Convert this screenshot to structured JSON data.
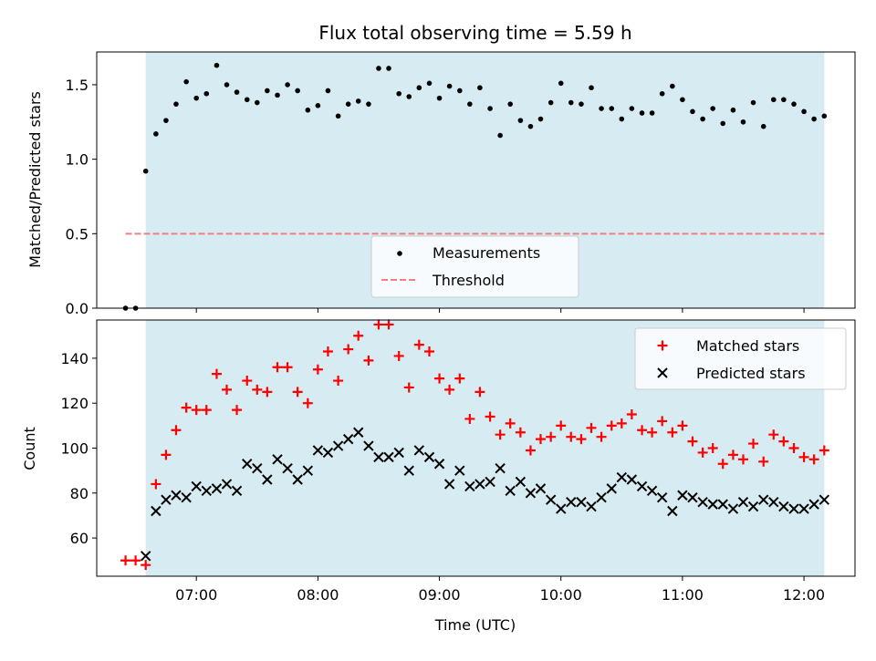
{
  "chart_data": [
    {
      "type": "scatter",
      "title": "Flux total observing time = 5.59 h",
      "xlabel": "",
      "ylabel": "Matched/Predicted stars",
      "xlim": [
        6.18,
        12.42
      ],
      "ylim": [
        0.0,
        1.72
      ],
      "yticks": [
        0.0,
        0.5,
        1.0,
        1.5
      ],
      "ytick_labels": [
        "0.0",
        "0.5",
        "1.0",
        "1.5"
      ],
      "observing_window": [
        6.583,
        12.167
      ],
      "threshold": {
        "name": "Threshold",
        "value": 0.5,
        "x_range": [
          6.417,
          12.167
        ],
        "color": "#f08080",
        "style": "dashed"
      },
      "legend": {
        "position": "lower-center",
        "entries": [
          "Measurements",
          "Threshold"
        ]
      },
      "series": [
        {
          "name": "Measurements",
          "color": "#000000",
          "marker": "dot",
          "x": [
            6.417,
            6.5,
            6.583,
            6.667,
            6.75,
            6.833,
            6.917,
            7.0,
            7.083,
            7.167,
            7.25,
            7.333,
            7.417,
            7.5,
            7.583,
            7.667,
            7.75,
            7.833,
            7.917,
            8.0,
            8.083,
            8.167,
            8.25,
            8.333,
            8.417,
            8.5,
            8.583,
            8.667,
            8.75,
            8.833,
            8.917,
            9.0,
            9.083,
            9.167,
            9.25,
            9.333,
            9.417,
            9.5,
            9.583,
            9.667,
            9.75,
            9.833,
            9.917,
            10.0,
            10.083,
            10.167,
            10.25,
            10.333,
            10.417,
            10.5,
            10.583,
            10.667,
            10.75,
            10.833,
            10.917,
            11.0,
            11.083,
            11.167,
            11.25,
            11.333,
            11.417,
            11.5,
            11.583,
            11.667,
            11.75,
            11.833,
            11.917,
            12.0,
            12.083,
            12.167
          ],
          "y": [
            0.0,
            0.0,
            0.92,
            1.17,
            1.26,
            1.37,
            1.52,
            1.41,
            1.44,
            1.63,
            1.5,
            1.45,
            1.4,
            1.38,
            1.46,
            1.43,
            1.5,
            1.46,
            1.33,
            1.36,
            1.46,
            1.29,
            1.37,
            1.39,
            1.37,
            1.61,
            1.61,
            1.44,
            1.42,
            1.48,
            1.51,
            1.41,
            1.49,
            1.46,
            1.37,
            1.48,
            1.34,
            1.16,
            1.37,
            1.26,
            1.22,
            1.27,
            1.38,
            1.51,
            1.38,
            1.37,
            1.48,
            1.34,
            1.34,
            1.27,
            1.34,
            1.31,
            1.31,
            1.44,
            1.49,
            1.4,
            1.32,
            1.27,
            1.34,
            1.24,
            1.33,
            1.25,
            1.38,
            1.22,
            1.4,
            1.4,
            1.37,
            1.32,
            1.27,
            1.29
          ]
        }
      ]
    },
    {
      "type": "scatter",
      "title": "",
      "xlabel": "Time (UTC)",
      "ylabel": "Count",
      "xlim": [
        6.18,
        12.42
      ],
      "ylim": [
        43,
        157
      ],
      "yticks": [
        60,
        80,
        100,
        120,
        140
      ],
      "ytick_labels": [
        "60",
        "80",
        "100",
        "120",
        "140"
      ],
      "xticks": [
        7,
        8,
        9,
        10,
        11,
        12
      ],
      "xtick_labels": [
        "07:00",
        "08:00",
        "09:00",
        "10:00",
        "11:00",
        "12:00"
      ],
      "observing_window": [
        6.583,
        12.167
      ],
      "legend": {
        "position": "top-right",
        "entries": [
          "Matched stars",
          "Predicted stars"
        ]
      },
      "x": [
        6.417,
        6.5,
        6.583,
        6.667,
        6.75,
        6.833,
        6.917,
        7.0,
        7.083,
        7.167,
        7.25,
        7.333,
        7.417,
        7.5,
        7.583,
        7.667,
        7.75,
        7.833,
        7.917,
        8.0,
        8.083,
        8.167,
        8.25,
        8.333,
        8.417,
        8.5,
        8.583,
        8.667,
        8.75,
        8.833,
        8.917,
        9.0,
        9.083,
        9.167,
        9.25,
        9.333,
        9.417,
        9.5,
        9.583,
        9.667,
        9.75,
        9.833,
        9.917,
        10.0,
        10.083,
        10.167,
        10.25,
        10.333,
        10.417,
        10.5,
        10.583,
        10.667,
        10.75,
        10.833,
        10.917,
        11.0,
        11.083,
        11.167,
        11.25,
        11.333,
        11.417,
        11.5,
        11.583,
        11.667,
        11.75,
        11.833,
        11.917,
        12.0,
        12.083,
        12.167
      ],
      "series": [
        {
          "name": "Matched stars",
          "color": "#ff0000",
          "marker": "plus",
          "values": [
            50,
            50,
            48,
            84,
            97,
            108,
            118,
            117,
            117,
            133,
            126,
            117,
            130,
            126,
            125,
            136,
            136,
            125,
            120,
            135,
            143,
            130,
            144,
            150,
            139,
            155,
            155,
            141,
            127,
            146,
            143,
            131,
            126,
            131,
            113,
            125,
            114,
            106,
            111,
            107,
            99,
            104,
            105,
            110,
            105,
            104,
            109,
            105,
            110,
            111,
            115,
            108,
            107,
            112,
            107,
            110,
            103,
            98,
            100,
            93,
            97,
            95,
            102,
            94,
            106,
            103,
            100,
            96,
            95,
            99
          ]
        },
        {
          "name": "Predicted stars",
          "color": "#000000",
          "marker": "x",
          "values": [
            null,
            null,
            52,
            72,
            77,
            79,
            78,
            83,
            81,
            82,
            84,
            81,
            93,
            91,
            86,
            95,
            91,
            86,
            90,
            99,
            98,
            101,
            104,
            107,
            101,
            96,
            96,
            98,
            90,
            99,
            96,
            93,
            84,
            90,
            83,
            84,
            85,
            91,
            81,
            85,
            80,
            82,
            77,
            73,
            76,
            76,
            74,
            78,
            82,
            87,
            86,
            83,
            81,
            78,
            72,
            79,
            78,
            76,
            75,
            75,
            73,
            76,
            74,
            77,
            76,
            74,
            73,
            73,
            75,
            77
          ]
        }
      ]
    }
  ]
}
